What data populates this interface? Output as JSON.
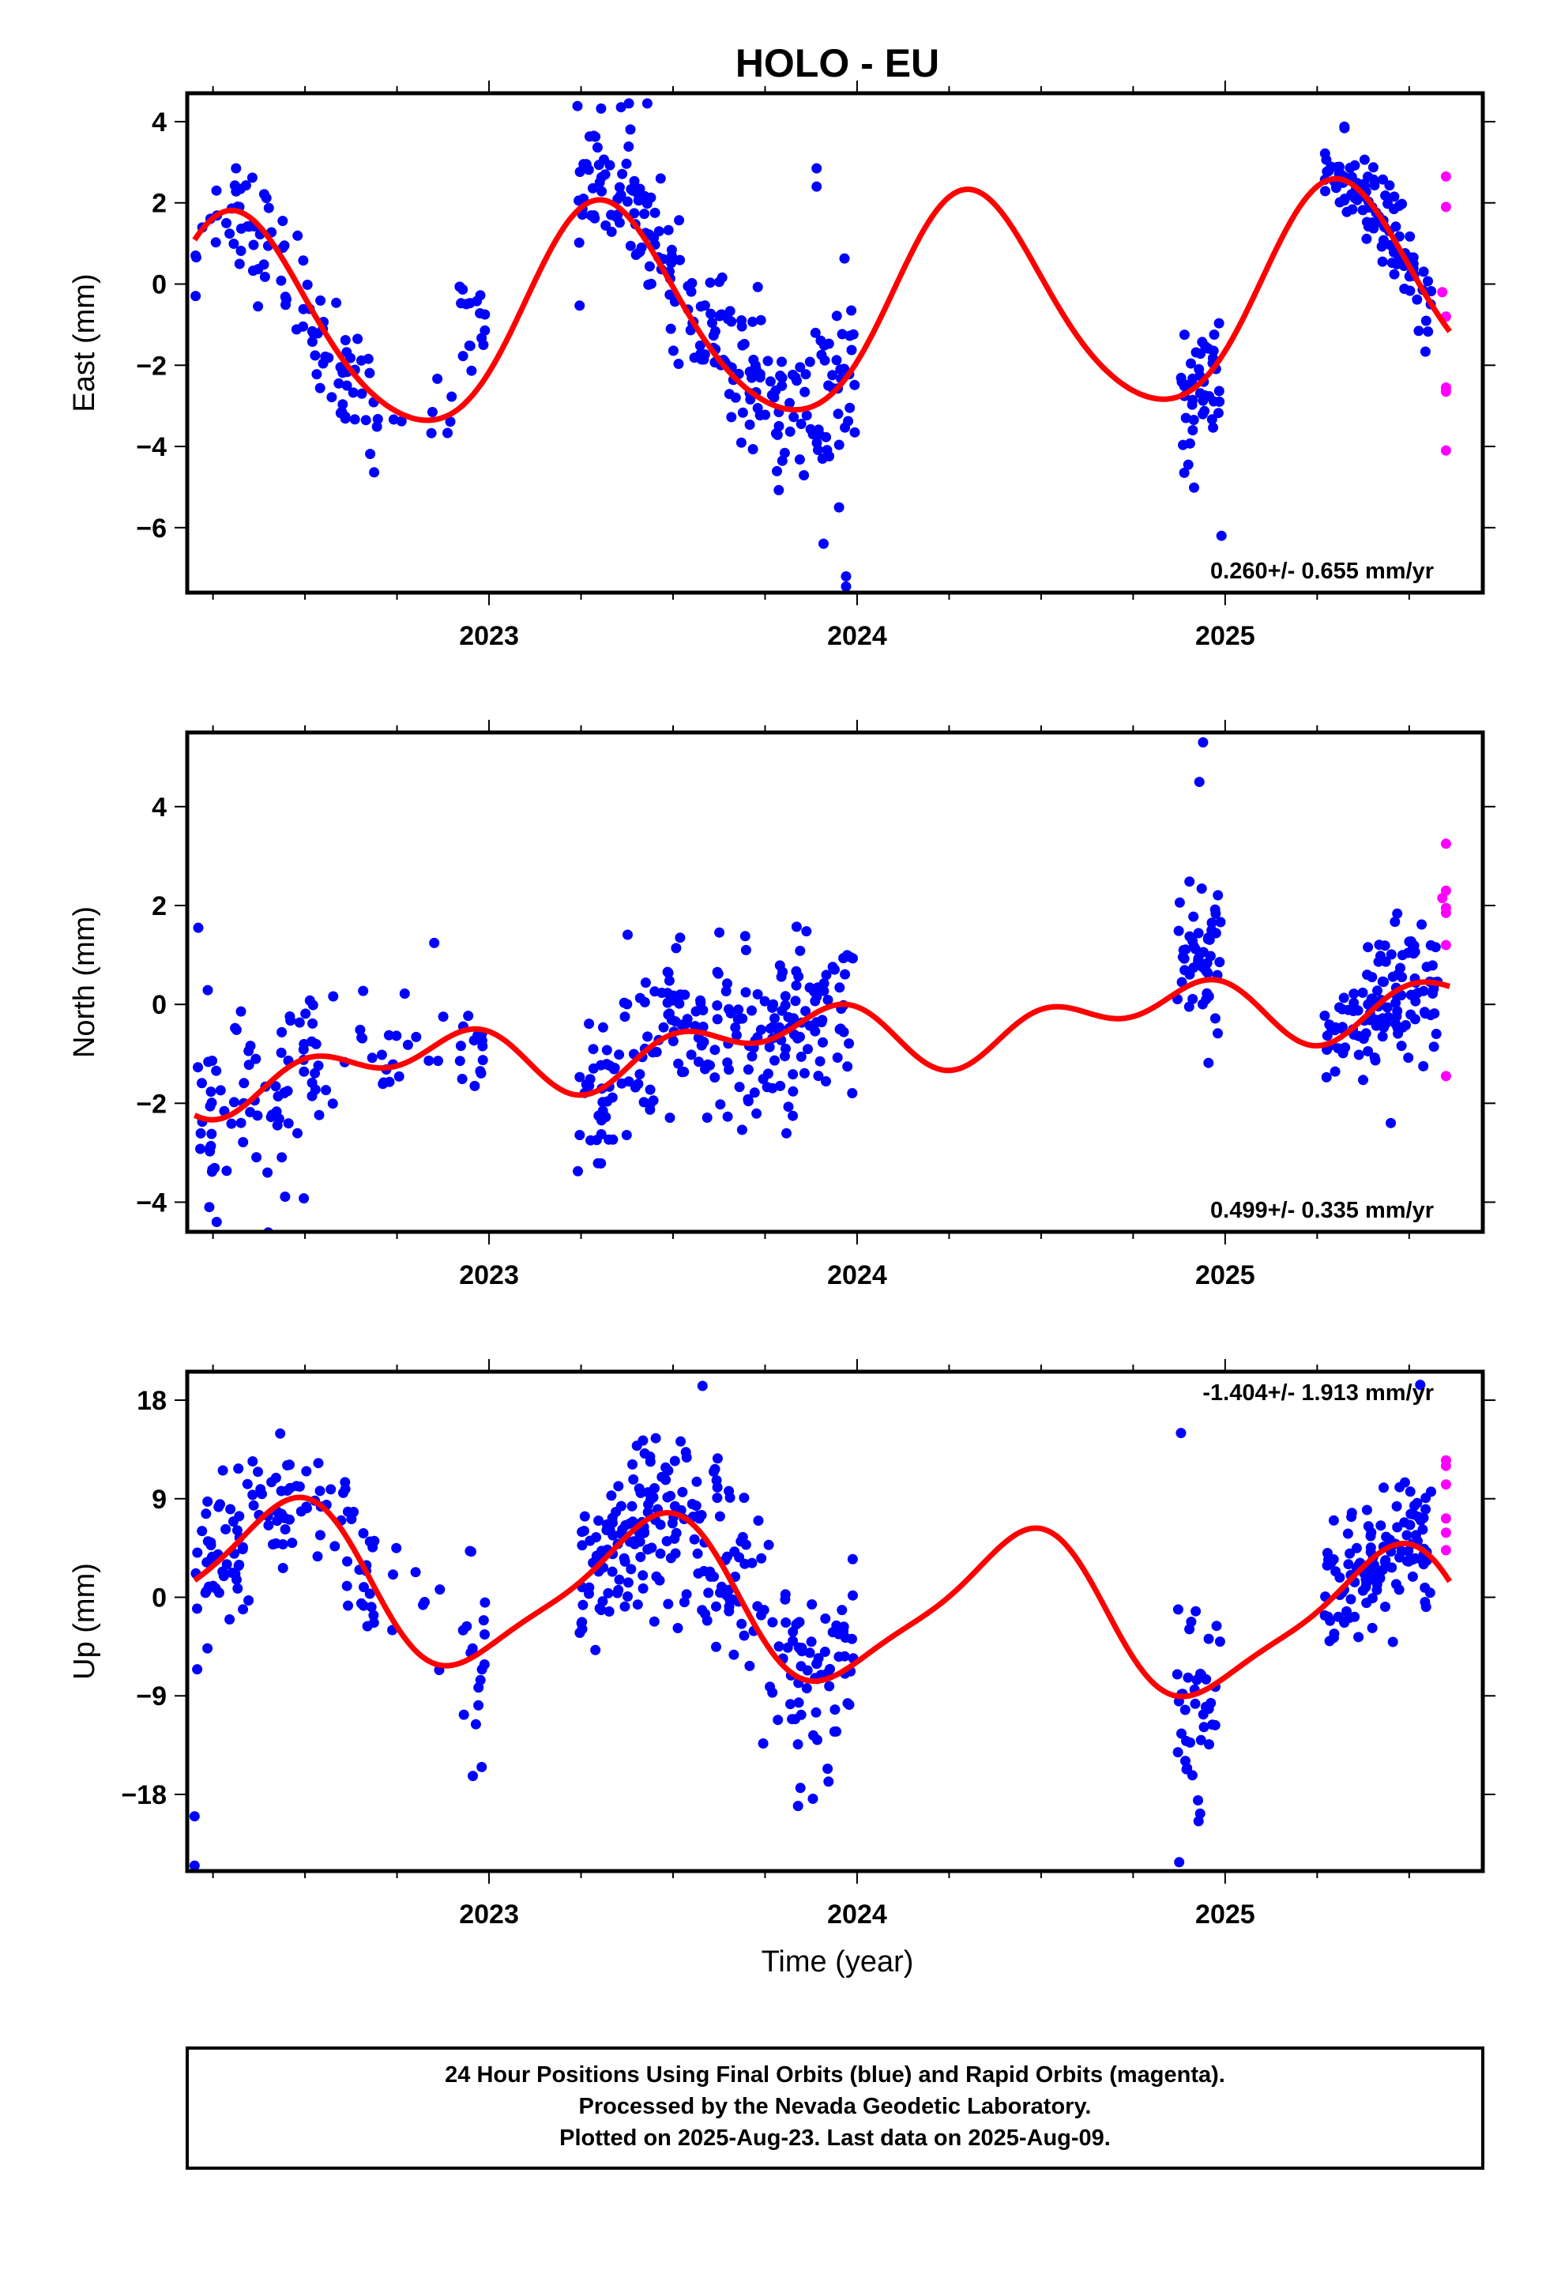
{
  "title": "HOLO - EU",
  "time_label": "Time (year)",
  "footer": [
    "24 Hour Positions Using Final Orbits (blue) and Rapid Orbits (magenta).",
    "Processed by the Nevada Geodetic Laboratory.",
    "Plotted on 2025-Aug-23. Last data on 2025-Aug-09."
  ],
  "colors": {
    "final_orbits": "#0000ff",
    "rapid_orbits": "#ff00ff",
    "model_fit": "#ff0000",
    "frame": "#000000"
  },
  "chart_data": [
    {
      "type": "scatter",
      "panel": "east",
      "ylabel": "East (mm)",
      "xlim": [
        2022.18,
        2025.7
      ],
      "ylim": [
        -7.6,
        4.7
      ],
      "yticks": [
        4,
        2,
        0,
        -2,
        -4,
        -6
      ],
      "xticks": [
        2023,
        2024,
        2025
      ],
      "rate_label": "0.260+/- 0.655 mm/yr",
      "rate_position": "bottom-right",
      "model": {
        "trend": 0.26,
        "offset": -0.65,
        "annual_cos": -0.98,
        "annual_sin": 2.45,
        "semiannual_cos": -0.28,
        "semiannual_sin": -0.08,
        "gaps": [
          [
            2023.03,
            2023.22
          ]
        ]
      },
      "data_segments": [
        {
          "from": 2022.2,
          "to": 2022.7,
          "n": 95,
          "spread": 0.75,
          "offset": -0.2
        },
        {
          "from": 2022.72,
          "to": 2022.9,
          "n": 8,
          "spread": 0.55,
          "offset": 0.3
        },
        {
          "from": 2022.92,
          "to": 2022.99,
          "n": 16,
          "spread": 0.7,
          "offset": 1.5
        },
        {
          "from": 2023.24,
          "to": 2023.77,
          "n": 160,
          "spread": 0.8,
          "offset": 0.4
        },
        {
          "from": 2023.77,
          "to": 2024.0,
          "n": 70,
          "spread": 1.15,
          "offset": -0.2
        },
        {
          "from": 2024.88,
          "to": 2024.99,
          "n": 45,
          "spread": 0.85,
          "offset": -0.4
        },
        {
          "from": 2025.27,
          "to": 2025.56,
          "n": 110,
          "spread": 0.55,
          "offset": 0.0
        }
      ],
      "rapid_points": [
        [
          2025.6,
          2.65
        ],
        [
          2025.6,
          1.9
        ],
        [
          2025.59,
          -0.2
        ],
        [
          2025.6,
          -0.8
        ],
        [
          2025.6,
          -2.55
        ],
        [
          2025.6,
          -2.65
        ],
        [
          2025.6,
          -4.1
        ]
      ],
      "outlier_points": [
        [
          2023.89,
          2.85
        ],
        [
          2023.89,
          2.4
        ],
        [
          2023.97,
          -7.2
        ],
        [
          2023.97,
          -7.45
        ],
        [
          2024.99,
          -6.2
        ],
        [
          2023.38,
          4.45
        ],
        [
          2023.43,
          4.45
        ]
      ]
    },
    {
      "type": "scatter",
      "panel": "north",
      "ylabel": "North (mm)",
      "xlim": [
        2022.18,
        2025.7
      ],
      "ylim": [
        -4.6,
        5.5
      ],
      "yticks": [
        4,
        2,
        0,
        -2,
        -4
      ],
      "xticks": [
        2023,
        2024,
        2025
      ],
      "rate_label": "0.499+/- 0.335 mm/yr",
      "rate_position": "bottom-right",
      "model": {
        "trend": 0.499,
        "offset": -0.62,
        "annual_cos": 0.15,
        "annual_sin": -0.42,
        "semiannual_cos": 0.42,
        "semiannual_sin": -0.05,
        "gaps": [
          [
            2023.03,
            2023.22
          ]
        ]
      },
      "data_segments": [
        {
          "from": 2022.2,
          "to": 2022.54,
          "n": 80,
          "spread": 0.95,
          "offset": -0.3
        },
        {
          "from": 2022.55,
          "to": 2022.9,
          "n": 25,
          "spread": 0.7,
          "offset": 0.4
        },
        {
          "from": 2022.92,
          "to": 2022.99,
          "n": 15,
          "spread": 0.5,
          "offset": -0.3
        },
        {
          "from": 2023.24,
          "to": 2023.99,
          "n": 230,
          "spread": 0.85,
          "offset": 0.0
        },
        {
          "from": 2024.87,
          "to": 2024.99,
          "n": 48,
          "spread": 0.8,
          "offset": 0.6
        },
        {
          "from": 2025.27,
          "to": 2025.58,
          "n": 120,
          "spread": 0.65,
          "offset": 0.0
        }
      ],
      "rapid_points": [
        [
          2025.6,
          3.25
        ],
        [
          2025.6,
          2.3
        ],
        [
          2025.59,
          2.15
        ],
        [
          2025.6,
          1.95
        ],
        [
          2025.6,
          1.85
        ],
        [
          2025.6,
          1.2
        ],
        [
          2025.6,
          -1.45
        ]
      ],
      "outlier_points": [
        [
          2024.94,
          5.3
        ],
        [
          2024.93,
          4.5
        ],
        [
          2022.24,
          -4.1
        ],
        [
          2022.26,
          -4.4
        ],
        [
          2022.21,
          1.55
        ],
        [
          2025.45,
          -2.4
        ]
      ]
    },
    {
      "type": "scatter",
      "panel": "up",
      "ylabel": "Up (mm)",
      "xlabel": "Time (year)",
      "xlim": [
        2022.18,
        2025.7
      ],
      "ylim": [
        -25.0,
        20.6
      ],
      "yticks": [
        18,
        9,
        0,
        -9,
        -18
      ],
      "xticks": [
        2023,
        2024,
        2025
      ],
      "rate_label": "-1.404+/- 1.913 mm/yr",
      "rate_position": "top-right",
      "model": {
        "trend": -1.404,
        "offset": -0.74,
        "annual_cos": -6.43,
        "annual_sin": 2.43,
        "semiannual_cos": 1.28,
        "semiannual_sin": 0.81,
        "gaps": [
          [
            2023.03,
            2023.22
          ]
        ]
      },
      "data_segments": [
        {
          "from": 2022.2,
          "to": 2022.4,
          "n": 55,
          "spread": 4.0,
          "offset": -1.0
        },
        {
          "from": 2022.4,
          "to": 2022.7,
          "n": 60,
          "spread": 3.0,
          "offset": 0.0
        },
        {
          "from": 2022.72,
          "to": 2022.9,
          "n": 8,
          "spread": 5.0,
          "offset": 0.0
        },
        {
          "from": 2022.92,
          "to": 2022.99,
          "n": 18,
          "spread": 6.0,
          "offset": 0.0
        },
        {
          "from": 2023.24,
          "to": 2023.5,
          "n": 110,
          "spread": 3.5,
          "offset": -0.5
        },
        {
          "from": 2023.5,
          "to": 2023.99,
          "n": 150,
          "spread": 4.5,
          "offset": 0.0
        },
        {
          "from": 2024.87,
          "to": 2024.99,
          "n": 42,
          "spread": 5.0,
          "offset": -1.0
        },
        {
          "from": 2025.27,
          "to": 2025.56,
          "n": 120,
          "spread": 3.0,
          "offset": 0.0
        }
      ],
      "rapid_points": [
        [
          2025.6,
          12.5
        ],
        [
          2025.6,
          12.0
        ],
        [
          2025.6,
          10.3
        ],
        [
          2025.6,
          7.2
        ],
        [
          2025.6,
          5.9
        ],
        [
          2025.6,
          4.3
        ]
      ],
      "outlier_points": [
        [
          2022.2,
          -20.0
        ],
        [
          2022.2,
          -24.5
        ],
        [
          2023.58,
          19.3
        ],
        [
          2025.53,
          19.4
        ],
        [
          2024.88,
          15.0
        ],
        [
          2022.98,
          -15.5
        ]
      ]
    }
  ]
}
